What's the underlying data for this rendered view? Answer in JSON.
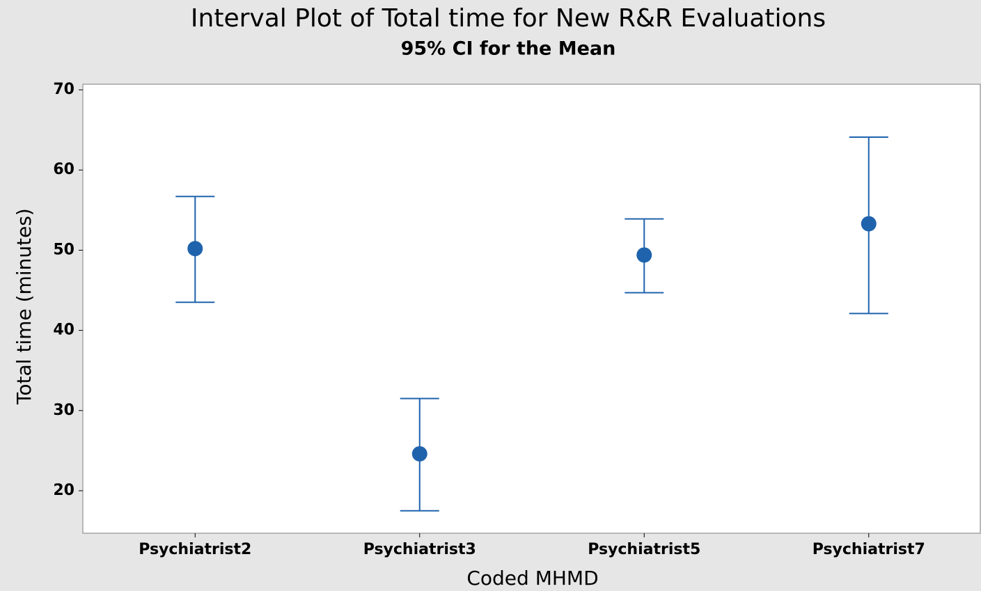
{
  "chart_data": {
    "type": "interval",
    "title": "Interval Plot of Total time for New R&R Evaluations",
    "subtitle": "95% CI for the Mean",
    "xlabel": "Coded MHMD",
    "ylabel": "Total time (minutes)",
    "categories": [
      "Psychiatrist2",
      "Psychiatrist3",
      "Psychiatrist5",
      "Psychiatrist7"
    ],
    "series": [
      {
        "color": "#1f63ad",
        "values": [
          50.2,
          24.6,
          49.4,
          53.3
        ],
        "lower": [
          43.5,
          17.5,
          44.7,
          42.1
        ],
        "upper": [
          56.7,
          31.5,
          53.9,
          64.1
        ]
      }
    ],
    "ylim": [
      14.7,
      70.7
    ],
    "yticks": [
      20,
      30,
      40,
      50,
      60,
      70
    ]
  }
}
